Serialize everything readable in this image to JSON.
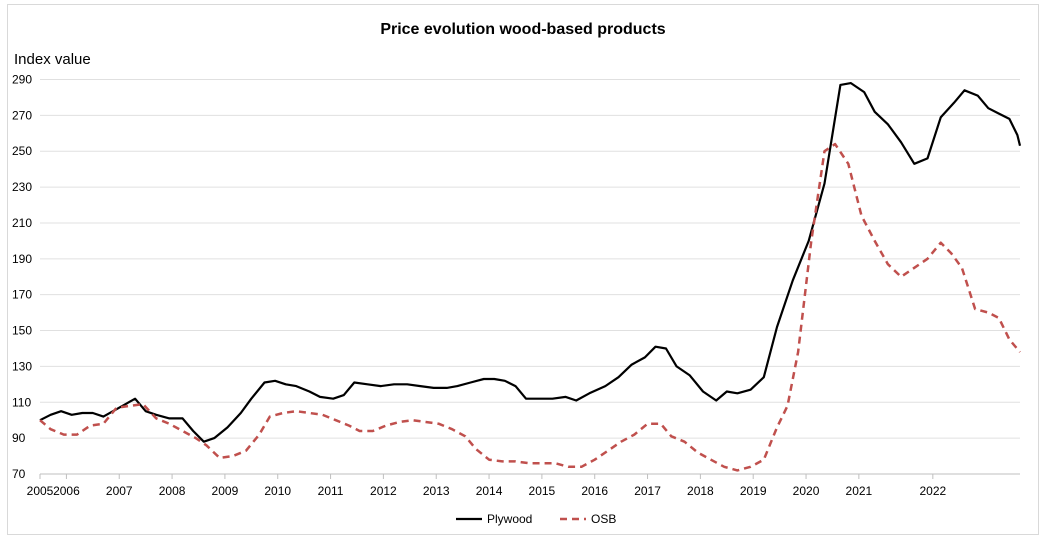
{
  "chart_data": {
    "type": "line",
    "title": "Price evolution wood-based products",
    "ylabel": "Index value",
    "xlabel": "",
    "ylim": [
      70,
      290
    ],
    "yticks": [
      70,
      90,
      110,
      130,
      150,
      170,
      190,
      210,
      230,
      250,
      270,
      290
    ],
    "xlim": [
      2005.0,
      2023.55
    ],
    "xtick_labels": [
      {
        "x": 2005.0,
        "label": "2005"
      },
      {
        "x": 2005.5,
        "label": "2006"
      },
      {
        "x": 2006.5,
        "label": "2007"
      },
      {
        "x": 2007.5,
        "label": "2008"
      },
      {
        "x": 2008.5,
        "label": "2009"
      },
      {
        "x": 2009.5,
        "label": "2010"
      },
      {
        "x": 2010.5,
        "label": "2011"
      },
      {
        "x": 2011.5,
        "label": "2012"
      },
      {
        "x": 2012.5,
        "label": "2013"
      },
      {
        "x": 2013.5,
        "label": "2014"
      },
      {
        "x": 2014.5,
        "label": "2015"
      },
      {
        "x": 2015.5,
        "label": "2016"
      },
      {
        "x": 2016.5,
        "label": "2017"
      },
      {
        "x": 2017.5,
        "label": "2018"
      },
      {
        "x": 2018.5,
        "label": "2019"
      },
      {
        "x": 2019.5,
        "label": "2020"
      },
      {
        "x": 2020.5,
        "label": "2021"
      },
      {
        "x": 2021.9,
        "label": "2022"
      }
    ],
    "grid": "horizontal",
    "legend_position": "bottom",
    "series": [
      {
        "name": "Plywood",
        "color": "#000000",
        "style": "solid",
        "points": [
          [
            2005.0,
            100
          ],
          [
            2005.2,
            103
          ],
          [
            2005.4,
            105
          ],
          [
            2005.6,
            103
          ],
          [
            2005.8,
            104
          ],
          [
            2006.0,
            104
          ],
          [
            2006.2,
            102
          ],
          [
            2006.5,
            107
          ],
          [
            2006.8,
            112
          ],
          [
            2007.0,
            105
          ],
          [
            2007.2,
            103
          ],
          [
            2007.45,
            101
          ],
          [
            2007.7,
            101
          ],
          [
            2007.9,
            94
          ],
          [
            2008.1,
            88
          ],
          [
            2008.3,
            90
          ],
          [
            2008.55,
            96
          ],
          [
            2008.8,
            104
          ],
          [
            2009.0,
            112
          ],
          [
            2009.25,
            121
          ],
          [
            2009.45,
            122
          ],
          [
            2009.65,
            120
          ],
          [
            2009.85,
            119
          ],
          [
            2010.1,
            116
          ],
          [
            2010.3,
            113
          ],
          [
            2010.55,
            112
          ],
          [
            2010.75,
            114
          ],
          [
            2010.95,
            121
          ],
          [
            2011.2,
            120
          ],
          [
            2011.45,
            119
          ],
          [
            2011.7,
            120
          ],
          [
            2011.95,
            120
          ],
          [
            2012.2,
            119
          ],
          [
            2012.45,
            118
          ],
          [
            2012.7,
            118
          ],
          [
            2012.9,
            119
          ],
          [
            2013.15,
            121
          ],
          [
            2013.4,
            123
          ],
          [
            2013.6,
            123
          ],
          [
            2013.8,
            122
          ],
          [
            2014.0,
            119
          ],
          [
            2014.2,
            112
          ],
          [
            2014.45,
            112
          ],
          [
            2014.7,
            112
          ],
          [
            2014.95,
            113
          ],
          [
            2015.15,
            111
          ],
          [
            2015.4,
            115
          ],
          [
            2015.7,
            119
          ],
          [
            2015.95,
            124
          ],
          [
            2016.2,
            131
          ],
          [
            2016.45,
            135
          ],
          [
            2016.65,
            141
          ],
          [
            2016.85,
            140
          ],
          [
            2017.05,
            130
          ],
          [
            2017.3,
            125
          ],
          [
            2017.55,
            116
          ],
          [
            2017.8,
            111
          ],
          [
            2018.0,
            116
          ],
          [
            2018.2,
            115
          ],
          [
            2018.45,
            117
          ],
          [
            2018.7,
            124
          ],
          [
            2018.95,
            152
          ],
          [
            2019.25,
            178
          ],
          [
            2019.55,
            200
          ],
          [
            2019.85,
            232
          ],
          [
            2020.15,
            287
          ],
          [
            2020.35,
            288
          ],
          [
            2020.6,
            283
          ],
          [
            2020.8,
            272
          ],
          [
            2021.05,
            265
          ],
          [
            2021.3,
            255
          ],
          [
            2021.55,
            243
          ],
          [
            2021.8,
            246
          ],
          [
            2022.05,
            269
          ],
          [
            2022.3,
            277
          ],
          [
            2022.5,
            284
          ],
          [
            2022.75,
            281
          ],
          [
            2022.95,
            274
          ],
          [
            2023.15,
            271
          ],
          [
            2023.35,
            268
          ],
          [
            2023.5,
            259
          ],
          [
            2023.55,
            253
          ]
        ]
      },
      {
        "name": "OSB",
        "color": "#c0504d",
        "style": "dashed",
        "points": [
          [
            2005.0,
            100
          ],
          [
            2005.2,
            95
          ],
          [
            2005.45,
            92
          ],
          [
            2005.7,
            92
          ],
          [
            2005.95,
            97
          ],
          [
            2006.2,
            98
          ],
          [
            2006.45,
            107
          ],
          [
            2006.7,
            108
          ],
          [
            2006.95,
            109
          ],
          [
            2007.2,
            101
          ],
          [
            2007.45,
            98
          ],
          [
            2007.7,
            94
          ],
          [
            2007.95,
            90
          ],
          [
            2008.15,
            86
          ],
          [
            2008.4,
            79
          ],
          [
            2008.65,
            80
          ],
          [
            2008.9,
            83
          ],
          [
            2009.15,
            92
          ],
          [
            2009.35,
            102
          ],
          [
            2009.6,
            104
          ],
          [
            2009.85,
            105
          ],
          [
            2010.1,
            104
          ],
          [
            2010.35,
            103
          ],
          [
            2010.6,
            100
          ],
          [
            2010.85,
            97
          ],
          [
            2011.05,
            94
          ],
          [
            2011.3,
            94
          ],
          [
            2011.55,
            97
          ],
          [
            2011.8,
            99
          ],
          [
            2012.05,
            100
          ],
          [
            2012.3,
            99
          ],
          [
            2012.55,
            98
          ],
          [
            2012.8,
            95
          ],
          [
            2013.05,
            91
          ],
          [
            2013.25,
            84
          ],
          [
            2013.5,
            78
          ],
          [
            2013.75,
            77
          ],
          [
            2014.0,
            77
          ],
          [
            2014.25,
            76
          ],
          [
            2014.5,
            76
          ],
          [
            2014.75,
            76
          ],
          [
            2015.0,
            74
          ],
          [
            2015.25,
            74
          ],
          [
            2015.5,
            78
          ],
          [
            2015.75,
            83
          ],
          [
            2016.0,
            88
          ],
          [
            2016.25,
            92
          ],
          [
            2016.5,
            98
          ],
          [
            2016.75,
            98
          ],
          [
            2016.95,
            91
          ],
          [
            2017.2,
            88
          ],
          [
            2017.45,
            82
          ],
          [
            2017.7,
            78
          ],
          [
            2017.95,
            74
          ],
          [
            2018.2,
            72
          ],
          [
            2018.45,
            74
          ],
          [
            2018.7,
            78
          ],
          [
            2018.95,
            96
          ],
          [
            2019.15,
            108
          ],
          [
            2019.35,
            138
          ],
          [
            2019.6,
            200
          ],
          [
            2019.85,
            250
          ],
          [
            2020.05,
            254
          ],
          [
            2020.3,
            243
          ],
          [
            2020.55,
            214
          ],
          [
            2020.8,
            200
          ],
          [
            2021.05,
            187
          ],
          [
            2021.3,
            180
          ],
          [
            2021.55,
            185
          ],
          [
            2021.8,
            190
          ],
          [
            2022.05,
            199
          ],
          [
            2022.25,
            193
          ],
          [
            2022.45,
            185
          ],
          [
            2022.7,
            162
          ],
          [
            2022.95,
            160
          ],
          [
            2023.15,
            157
          ],
          [
            2023.35,
            145
          ],
          [
            2023.55,
            138
          ]
        ]
      }
    ]
  }
}
